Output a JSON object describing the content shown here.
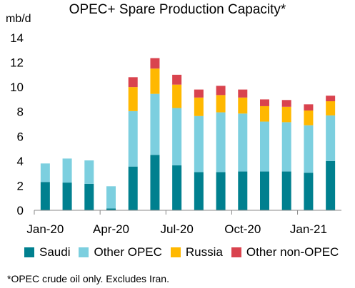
{
  "chart_data": {
    "type": "bar",
    "stacked": true,
    "title": "OPEC+ Spare Production Capacity*",
    "ylabel": "mb/d",
    "xlabel": "",
    "ylim": [
      0,
      14
    ],
    "yticks": [
      0,
      2,
      4,
      6,
      8,
      10,
      12,
      14
    ],
    "grid": false,
    "legend_position": "bottom",
    "categories": [
      "Jan-20",
      "Feb-20",
      "Mar-20",
      "Apr-20",
      "May-20",
      "Jun-20",
      "Jul-20",
      "Aug-20",
      "Sep-20",
      "Oct-20",
      "Nov-20",
      "Dec-20",
      "Jan-21",
      "Feb-21"
    ],
    "x_tick_labels": [
      {
        "category": "Jan-20",
        "label": "Jan-20"
      },
      {
        "category": "Apr-20",
        "label": "Apr-20"
      },
      {
        "category": "Jul-20",
        "label": "Jul-20"
      },
      {
        "category": "Oct-20",
        "label": "Oct-20"
      },
      {
        "category": "Jan-21",
        "label": "Jan-21"
      }
    ],
    "series": [
      {
        "name": "Saudi",
        "color": "#00808F",
        "values": [
          2.3,
          2.25,
          2.15,
          0.15,
          3.55,
          4.5,
          3.65,
          3.1,
          3.1,
          3.15,
          3.15,
          3.15,
          3.05,
          4.0
        ]
      },
      {
        "name": "Other OPEC",
        "color": "#7CCFDF",
        "values": [
          1.5,
          1.95,
          1.9,
          1.8,
          4.5,
          4.95,
          4.65,
          4.55,
          4.85,
          4.7,
          4.05,
          4.0,
          3.85,
          3.7
        ]
      },
      {
        "name": "Russia",
        "color": "#FFB800",
        "values": [
          0,
          0,
          0,
          0,
          1.95,
          2.05,
          1.9,
          1.5,
          1.4,
          1.3,
          1.25,
          1.25,
          1.2,
          1.15
        ]
      },
      {
        "name": "Other non-OPEC",
        "color": "#D9434E",
        "values": [
          0,
          0,
          0,
          0,
          0.8,
          0.85,
          0.8,
          0.65,
          0.75,
          0.65,
          0.55,
          0.55,
          0.5,
          0.45
        ]
      }
    ]
  },
  "footnote": "*OPEC crude oil only. Excludes Iran."
}
